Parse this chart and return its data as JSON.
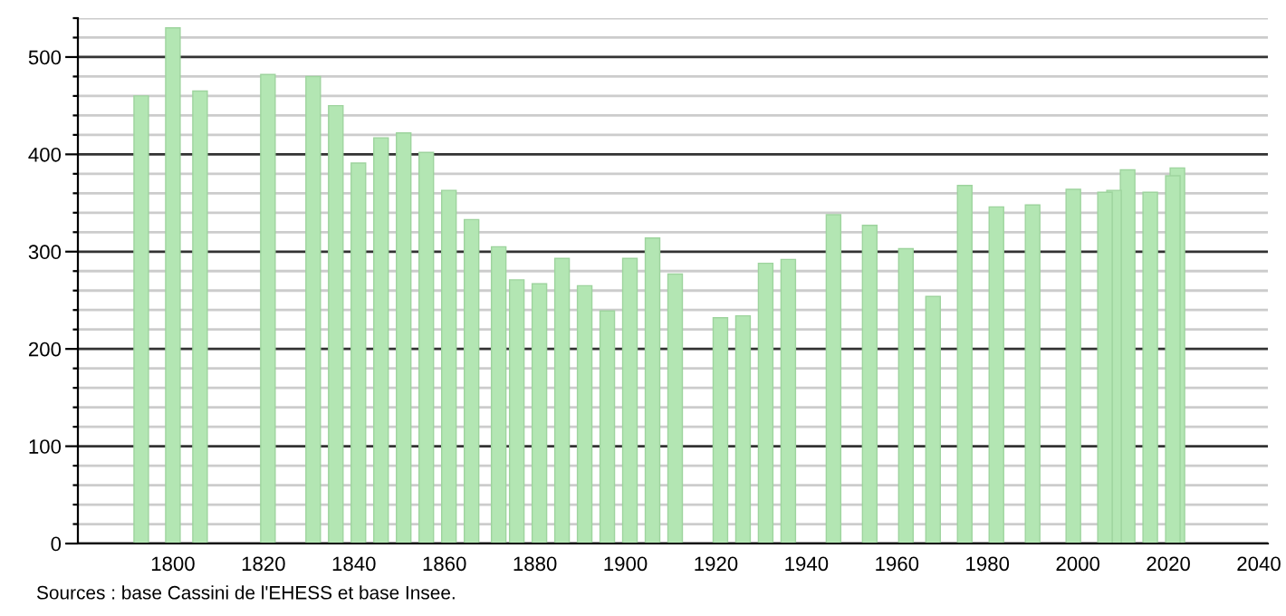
{
  "chart_data": {
    "type": "bar",
    "color": "#b3e6b3",
    "x": [
      1793,
      1800,
      1806,
      1821,
      1831,
      1836,
      1841,
      1846,
      1851,
      1856,
      1861,
      1866,
      1872,
      1876,
      1881,
      1886,
      1891,
      1896,
      1901,
      1906,
      1911,
      1921,
      1926,
      1931,
      1936,
      1946,
      1954,
      1962,
      1968,
      1975,
      1982,
      1990,
      1999,
      2006,
      2008,
      2011,
      2016,
      2021,
      2022
    ],
    "values": [
      460,
      530,
      465,
      482,
      480,
      450,
      391,
      417,
      422,
      402,
      363,
      333,
      305,
      271,
      267,
      293,
      265,
      239,
      293,
      314,
      277,
      232,
      234,
      288,
      292,
      338,
      327,
      303,
      254,
      368,
      346,
      348,
      364,
      361,
      363,
      384,
      361,
      378,
      386
    ],
    "xlim": [
      1779,
      2042
    ],
    "xticks": [
      1800,
      1820,
      1840,
      1860,
      1880,
      1900,
      1920,
      1940,
      1960,
      1980,
      2000,
      2020,
      2040
    ],
    "ylim": [
      0,
      540
    ],
    "yticks": [
      0,
      {
        "value": 20,
        "label": null
      },
      {
        "value": 40,
        "label": null
      },
      {
        "value": 60,
        "label": null
      },
      {
        "value": 80,
        "label": null
      },
      100,
      {
        "value": 120,
        "label": null
      },
      {
        "value": 140,
        "label": null
      },
      {
        "value": 160,
        "label": null
      },
      {
        "value": 180,
        "label": null
      },
      200,
      {
        "value": 220,
        "label": null
      },
      {
        "value": 240,
        "label": null
      },
      {
        "value": 260,
        "label": null
      },
      {
        "value": 280,
        "label": null
      },
      300,
      {
        "value": 320,
        "label": null
      },
      {
        "value": 340,
        "label": null
      },
      {
        "value": 360,
        "label": null
      },
      {
        "value": 380,
        "label": null
      },
      400,
      {
        "value": 420,
        "label": null
      },
      {
        "value": 440,
        "label": null
      },
      {
        "value": 460,
        "label": null
      },
      {
        "value": 480,
        "label": null
      },
      500,
      {
        "value": 520,
        "label": null
      },
      {
        "value": 540,
        "label": null
      }
    ],
    "grid": "y",
    "annotations": [
      "Sources : base Cassini de l'EHESS et base Insee."
    ]
  }
}
